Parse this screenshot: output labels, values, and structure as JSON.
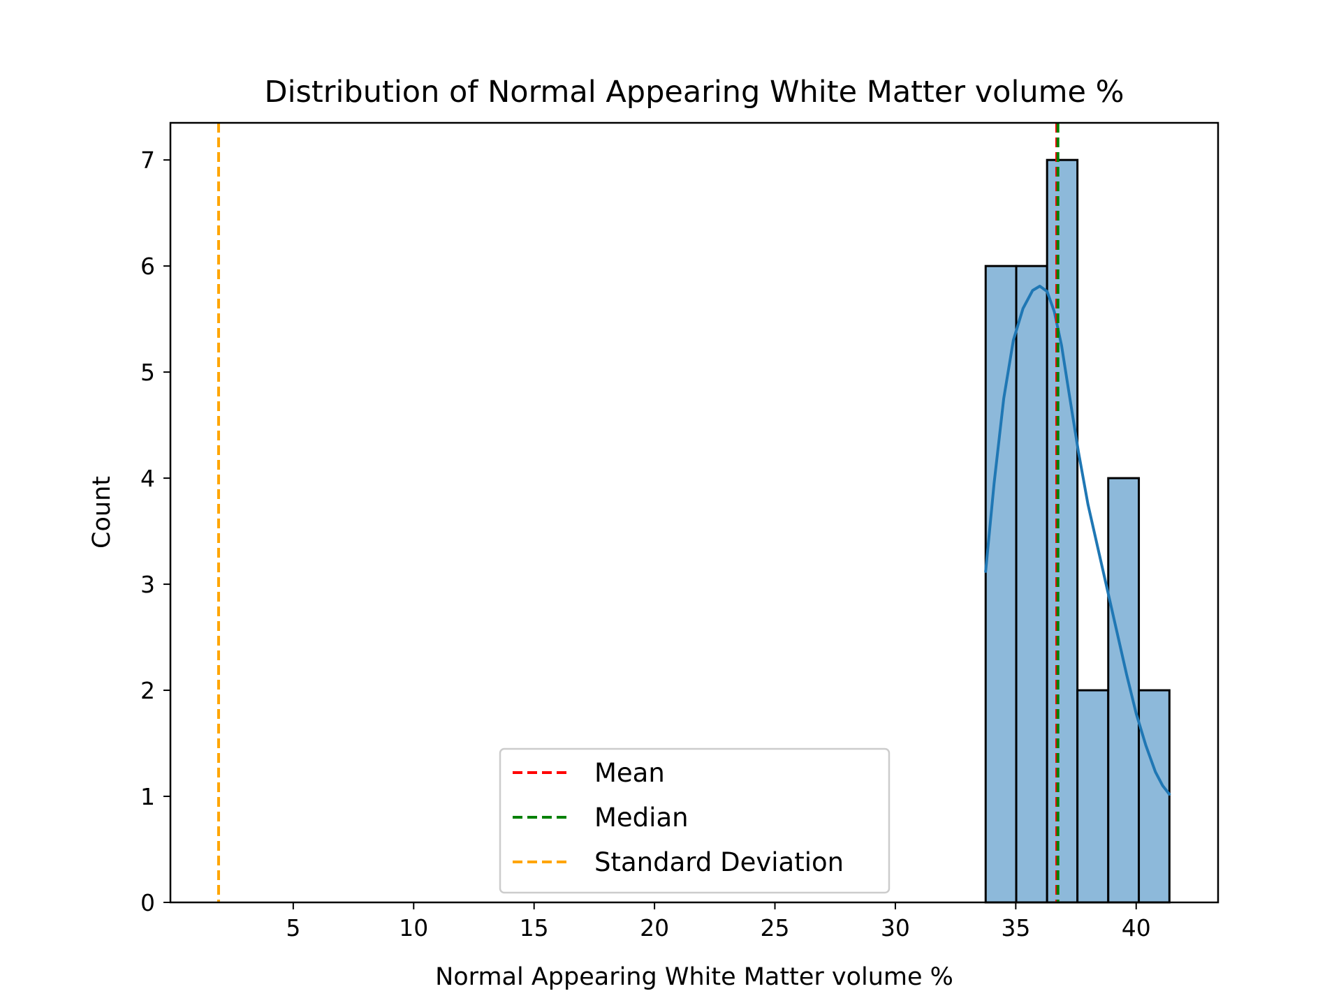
{
  "chart_data": {
    "type": "bar",
    "title": "Distribution of Normal Appearing White Matter volume %",
    "xlabel": "Normal Appearing White Matter volume %",
    "ylabel": "Count",
    "xlim": [
      -0.1,
      43.4
    ],
    "ylim": [
      0,
      7.35
    ],
    "xticks": [
      5,
      10,
      15,
      20,
      25,
      30,
      35,
      40
    ],
    "yticks": [
      0,
      1,
      2,
      3,
      4,
      5,
      6,
      7
    ],
    "grid": false,
    "bins": [
      {
        "x0": 33.75,
        "x1": 35.02,
        "count": 6
      },
      {
        "x0": 35.02,
        "x1": 36.3,
        "count": 6
      },
      {
        "x0": 36.3,
        "x1": 37.56,
        "count": 7
      },
      {
        "x0": 37.56,
        "x1": 38.84,
        "count": 2
      },
      {
        "x0": 38.84,
        "x1": 40.11,
        "count": 4
      },
      {
        "x0": 40.11,
        "x1": 41.38,
        "count": 2
      }
    ],
    "bar_color": "#8db9da",
    "bar_edge_color": "#000000",
    "kde": {
      "color": "#1f77b4",
      "x": [
        33.75,
        34.1,
        34.5,
        34.9,
        35.3,
        35.7,
        36.0,
        36.3,
        36.6,
        36.9,
        37.2,
        37.6,
        38.0,
        38.4,
        38.8,
        39.2,
        39.6,
        40.0,
        40.4,
        40.8,
        41.1,
        41.38
      ],
      "y": [
        3.12,
        3.95,
        4.75,
        5.3,
        5.6,
        5.77,
        5.81,
        5.76,
        5.57,
        5.25,
        4.82,
        4.25,
        3.75,
        3.35,
        2.95,
        2.55,
        2.15,
        1.78,
        1.48,
        1.23,
        1.1,
        1.02
      ]
    },
    "lines": [
      {
        "name": "Mean",
        "x": 36.7,
        "color": "#ff0000"
      },
      {
        "name": "Median",
        "x": 36.75,
        "color": "#008000"
      },
      {
        "name": "Standard Deviation",
        "x": 1.9,
        "color": "#ffa500"
      }
    ],
    "legend": {
      "position": "lower-center",
      "entries": [
        {
          "label": "Mean",
          "color": "#ff0000"
        },
        {
          "label": "Median",
          "color": "#008000"
        },
        {
          "label": "Standard Deviation",
          "color": "#ffa500"
        }
      ]
    }
  }
}
